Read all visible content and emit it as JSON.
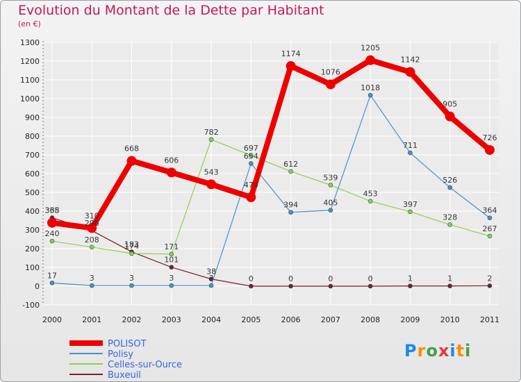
{
  "title": "Evolution du Montant de la Dette par Habitant",
  "subtitle": "(en €)",
  "logo": {
    "letters": [
      "P",
      "r",
      "o",
      "x",
      "i",
      "t",
      "i"
    ],
    "colors": [
      "#1e88e5",
      "#fb8c00",
      "#43a047",
      "#e53935",
      "#1e88e5",
      "#fb8c00",
      "#43a047"
    ]
  },
  "chart_data": {
    "type": "line",
    "title": "Evolution du Montant de la Dette par Habitant",
    "ylabel": "(en €)",
    "x": [
      "2000",
      "2001",
      "2002",
      "2003",
      "2004",
      "2005",
      "2006",
      "2007",
      "2008",
      "2009",
      "2010",
      "2011"
    ],
    "ylim": [
      -100,
      1300
    ],
    "yticks": [
      -100,
      0,
      100,
      200,
      300,
      400,
      500,
      600,
      700,
      800,
      900,
      1000,
      1100,
      1200,
      1300
    ],
    "grid": true,
    "legend": "bottom-left",
    "series": [
      {
        "name": "POLISOT",
        "color": "#ee0000",
        "values": [
          338,
          310,
          668,
          606,
          543,
          474,
          1174,
          1076,
          1205,
          1142,
          905,
          726
        ]
      },
      {
        "name": "Polisy",
        "color": "#4a90c8",
        "values": [
          17,
          3,
          3,
          3,
          3,
          654,
          394,
          405,
          1018,
          711,
          526,
          364
        ]
      },
      {
        "name": "Celles-sur-Ource",
        "color": "#8ad14a",
        "values": [
          240,
          208,
          174,
          171,
          782,
          697,
          612,
          539,
          453,
          397,
          328,
          267
        ]
      },
      {
        "name": "Buxeuil",
        "color": "#7a1f1f",
        "values": [
          365,
          296,
          183,
          101,
          38,
          0,
          0,
          0,
          0,
          1,
          1,
          2
        ]
      }
    ]
  }
}
